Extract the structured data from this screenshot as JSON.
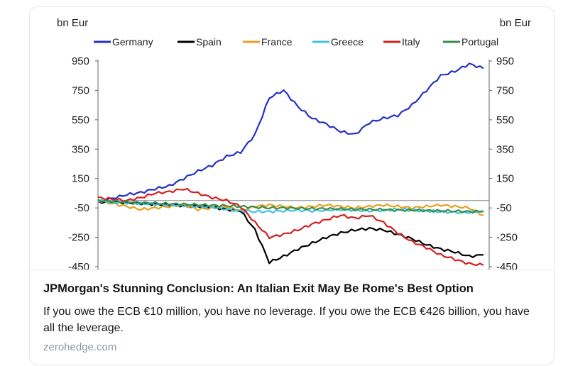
{
  "card": {
    "title": "JPMorgan's Stunning Conclusion: An Italian Exit May Be Rome's Best Option",
    "description": "If you owe the ECB €10 million, you have no leverage. If you owe the ECB €426 billion, you have all the leverage.",
    "domain": "zerohedge.com"
  },
  "chart_data": {
    "type": "line",
    "title": "",
    "unit_left": "bn Eur",
    "unit_right": "bn Eur",
    "ylim": [
      -450,
      950
    ],
    "yticks": [
      950,
      750,
      550,
      350,
      150,
      -50,
      -250,
      -450
    ],
    "legend_position": "top",
    "grid": false,
    "series": [
      {
        "name": "Germany",
        "color": "#2432c4",
        "values": [
          -10,
          15,
          40,
          55,
          80,
          100,
          150,
          200,
          240,
          300,
          330,
          450,
          700,
          750,
          640,
          560,
          520,
          470,
          450,
          530,
          560,
          580,
          650,
          750,
          850,
          880,
          930,
          900
        ]
      },
      {
        "name": "Spain",
        "color": "#000000",
        "values": [
          -10,
          -10,
          -15,
          -20,
          -25,
          -30,
          -35,
          -40,
          -45,
          -60,
          -70,
          -200,
          -420,
          -380,
          -330,
          -290,
          -250,
          -220,
          -200,
          -190,
          -200,
          -230,
          -260,
          -300,
          -330,
          -350,
          -380,
          -370
        ]
      },
      {
        "name": "France",
        "color": "#e8a020",
        "values": [
          0,
          -20,
          -40,
          -60,
          -50,
          -40,
          -30,
          -60,
          -50,
          -40,
          -70,
          -40,
          -30,
          -40,
          -50,
          -40,
          -30,
          -40,
          -50,
          -40,
          -30,
          -40,
          -50,
          -40,
          -30,
          -40,
          -50,
          -100
        ]
      },
      {
        "name": "Greece",
        "color": "#3cc3e6",
        "values": [
          0,
          -10,
          -15,
          -20,
          -25,
          -30,
          -35,
          -40,
          -45,
          -60,
          -70,
          -75,
          -75,
          -70,
          -65,
          -70,
          -65,
          -60,
          -65,
          -70,
          -65,
          -60,
          -65,
          -70,
          -75,
          -80,
          -80,
          -70
        ]
      },
      {
        "name": "Italy",
        "color": "#d42020",
        "values": [
          20,
          10,
          0,
          20,
          50,
          60,
          80,
          50,
          20,
          0,
          -40,
          -150,
          -250,
          -230,
          -200,
          -160,
          -130,
          -100,
          -120,
          -100,
          -150,
          -220,
          -280,
          -320,
          -370,
          -400,
          -430,
          -440
        ]
      },
      {
        "name": "Portugal",
        "color": "#3a8c4a",
        "values": [
          0,
          -5,
          -10,
          -15,
          -18,
          -22,
          -25,
          -28,
          -32,
          -35,
          -40,
          -45,
          -50,
          -50,
          -52,
          -55,
          -55,
          -58,
          -60,
          -60,
          -62,
          -65,
          -65,
          -68,
          -70,
          -72,
          -75,
          -75
        ]
      }
    ]
  }
}
